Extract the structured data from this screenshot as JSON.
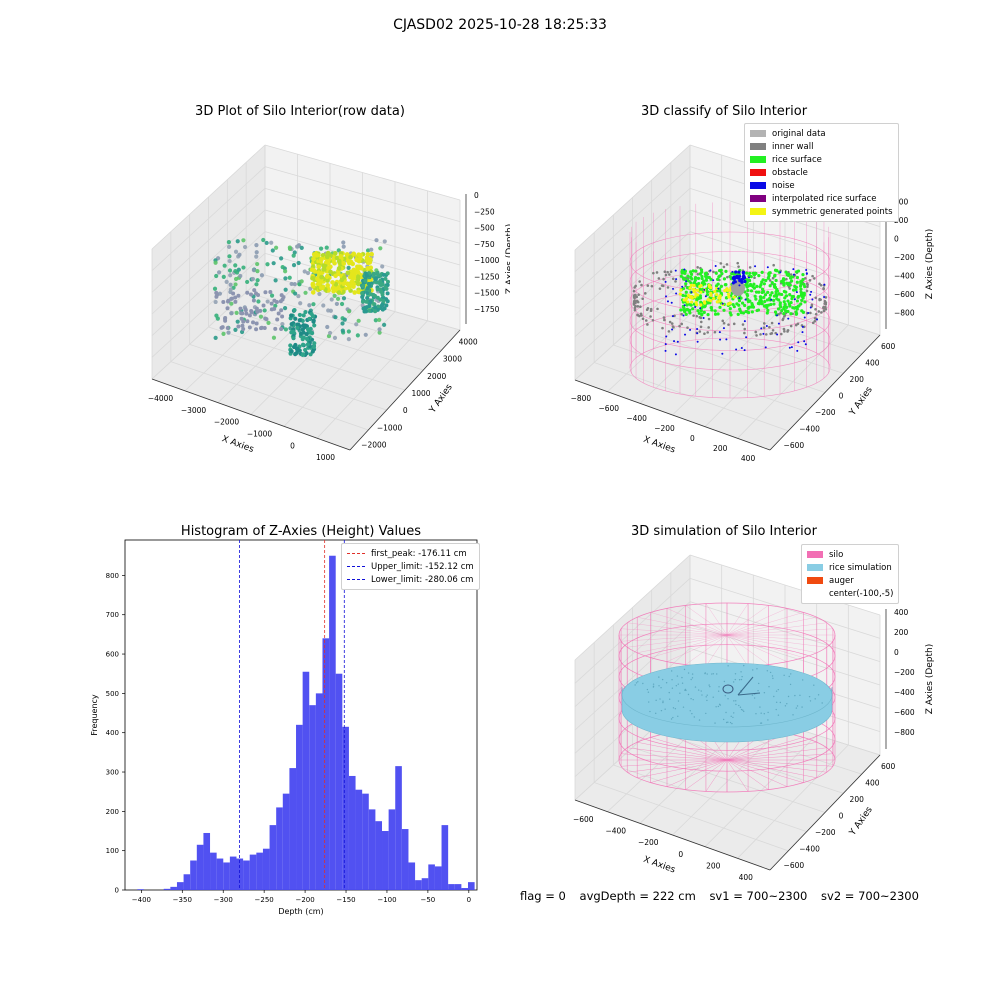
{
  "suptitle": "CJASD02 2025-10-28 18:25:33",
  "colors": {
    "hist_bar": "#4848f0",
    "first_peak": "#e0302a",
    "limit": "#1010d8",
    "silo": "#f26fb4",
    "rice_simulation": "#89cde4",
    "auger": "#f04a10",
    "original": "#b3b3b3",
    "inner_wall": "#808080",
    "rice_surface": "#22f022",
    "obstacle": "#f01010",
    "noise": "#0a0ae6",
    "interpolated": "#800080",
    "symmetric": "#f4f414"
  },
  "panel1": {
    "title": "3D Plot of Silo Interior(row data)",
    "xlabel": "X Axies",
    "ylabel": "Y Axies",
    "zlabel": "Z Axies (Depth)",
    "x_ticks": [
      "−4000",
      "−3000",
      "−2000",
      "−1000",
      "0",
      "1000"
    ],
    "y_ticks": [
      "−2000",
      "−1000",
      "0",
      "1000",
      "2000",
      "3000",
      "4000"
    ],
    "z_ticks": [
      "0",
      "−250",
      "−500",
      "−750",
      "−1000",
      "−1250",
      "−1500",
      "−1750"
    ]
  },
  "panel2": {
    "title": "3D classify of Silo Interior",
    "xlabel": "X Axies",
    "ylabel": "Y Axies",
    "zlabel": "Z Axies (Depth)",
    "x_ticks": [
      "−800",
      "−600",
      "−400",
      "−200",
      "0",
      "200",
      "400"
    ],
    "y_ticks": [
      "−600",
      "−400",
      "−200",
      "0",
      "200",
      "400",
      "600"
    ],
    "z_ticks": [
      "400",
      "200",
      "0",
      "−200",
      "−400",
      "−600",
      "−800"
    ],
    "legend": [
      {
        "label": "original data",
        "color": "#b3b3b3"
      },
      {
        "label": "inner wall",
        "color": "#808080"
      },
      {
        "label": "rice surface",
        "color": "#22f022"
      },
      {
        "label": "obstacle",
        "color": "#f01010"
      },
      {
        "label": "noise",
        "color": "#0a0ae6"
      },
      {
        "label": "interpolated rice surface",
        "color": "#800080"
      },
      {
        "label": "symmetric generated points",
        "color": "#f4f414"
      }
    ]
  },
  "panel4": {
    "title": "3D simulation of Silo Interior",
    "xlabel": "X Axies",
    "ylabel": "Y Axies",
    "zlabel": "Z Axies (Depth)",
    "x_ticks": [
      "−600",
      "−400",
      "−200",
      "0",
      "200",
      "400"
    ],
    "y_ticks": [
      "−600",
      "−400",
      "−200",
      "0",
      "200",
      "400",
      "600"
    ],
    "z_ticks": [
      "400",
      "200",
      "0",
      "−200",
      "−400",
      "−600",
      "−800"
    ],
    "legend": [
      {
        "label": "silo",
        "color": "#f26fb4"
      },
      {
        "label": "rice simulation",
        "color": "#89cde4"
      },
      {
        "label": "auger",
        "color": "#f04a10"
      },
      {
        "label": "center(-100,-5)",
        "color": ""
      }
    ]
  },
  "footer": {
    "flag": "flag = 0",
    "avg": "avgDepth = 222 cm",
    "sv1": "sv1 = 700~2300",
    "sv2": "sv2 = 700~2300"
  },
  "chart_data": {
    "type": "bar",
    "title": "Histogram of Z-Axies (Height) Values",
    "xlabel": "Depth (cm)",
    "ylabel": "Frequency",
    "xlim": [
      -420,
      10
    ],
    "ylim": [
      0,
      890
    ],
    "x_ticks": [
      -400,
      -350,
      -300,
      -250,
      -200,
      -150,
      -100,
      -50,
      0
    ],
    "y_ticks": [
      0,
      100,
      200,
      300,
      400,
      500,
      600,
      700,
      800
    ],
    "bin_width": 8.08,
    "bin_edges_start": -405,
    "values": [
      2,
      0,
      0,
      0,
      3,
      8,
      20,
      40,
      75,
      115,
      145,
      95,
      80,
      70,
      85,
      80,
      75,
      90,
      95,
      105,
      165,
      210,
      245,
      310,
      420,
      555,
      470,
      500,
      640,
      850,
      550,
      415,
      290,
      255,
      245,
      205,
      175,
      150,
      205,
      315,
      155,
      70,
      25,
      30,
      65,
      60,
      165,
      15,
      15,
      5,
      20
    ],
    "annotations": [
      {
        "label": "first_peak: -176.11 cm",
        "x": -176.11,
        "style": "red dashed"
      },
      {
        "label": "Upper_limit: -152.12 cm",
        "x": -152.12,
        "style": "blue dashed"
      },
      {
        "label": "Lower_limit: -280.06 cm",
        "x": -280.06,
        "style": "blue dashed"
      }
    ],
    "legend_position": "upper right"
  }
}
